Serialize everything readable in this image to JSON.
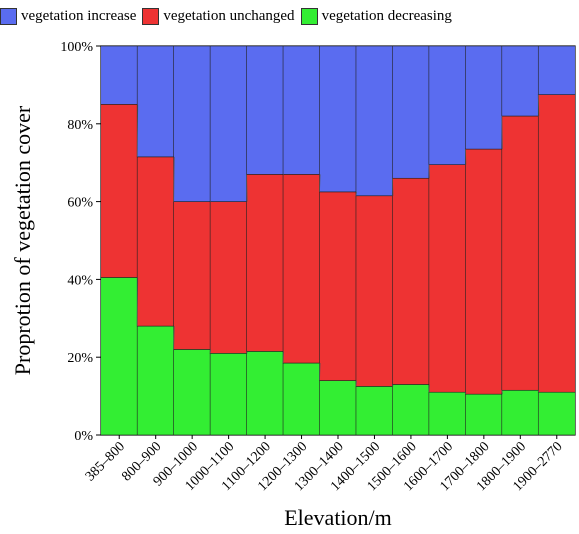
{
  "chart_data": {
    "type": "bar",
    "stacked": true,
    "percent": true,
    "categories": [
      "385–800",
      "800–900",
      "900–1000",
      "1000–1100",
      "1100–1200",
      "1200–1300",
      "1300–1400",
      "1400–1500",
      "1500–1600",
      "1600–1700",
      "1700–1800",
      "1800–1900",
      "1900–2770"
    ],
    "series": [
      {
        "name": "vegetation decreasing",
        "color": "#33ee33",
        "values": [
          40.5,
          28,
          22,
          21,
          21.5,
          18.5,
          14,
          12.5,
          13,
          11,
          10.5,
          11.5,
          11
        ]
      },
      {
        "name": "vegetation unchanged",
        "color": "#ee3333",
        "values": [
          44.5,
          43.5,
          38,
          39,
          45.5,
          48.5,
          48.5,
          49,
          53,
          58.5,
          63,
          70.5,
          76.5
        ]
      },
      {
        "name": "vegetation increase",
        "color": "#5a6cf0",
        "values": [
          15,
          28.5,
          40,
          40,
          33,
          33,
          37.5,
          38.5,
          34,
          30.5,
          26.5,
          18,
          12.5
        ]
      }
    ],
    "legend_order": [
      "vegetation increase",
      "vegetation unchanged",
      "vegetation decreasing"
    ],
    "legend_position": "top",
    "xlabel": "Elevation/m",
    "ylabel": "Proprotion of vegetation cover",
    "ylim": [
      0,
      100
    ],
    "yticks": [
      "0%",
      "20%",
      "40%",
      "60%",
      "80%",
      "100%"
    ],
    "grid": false
  }
}
